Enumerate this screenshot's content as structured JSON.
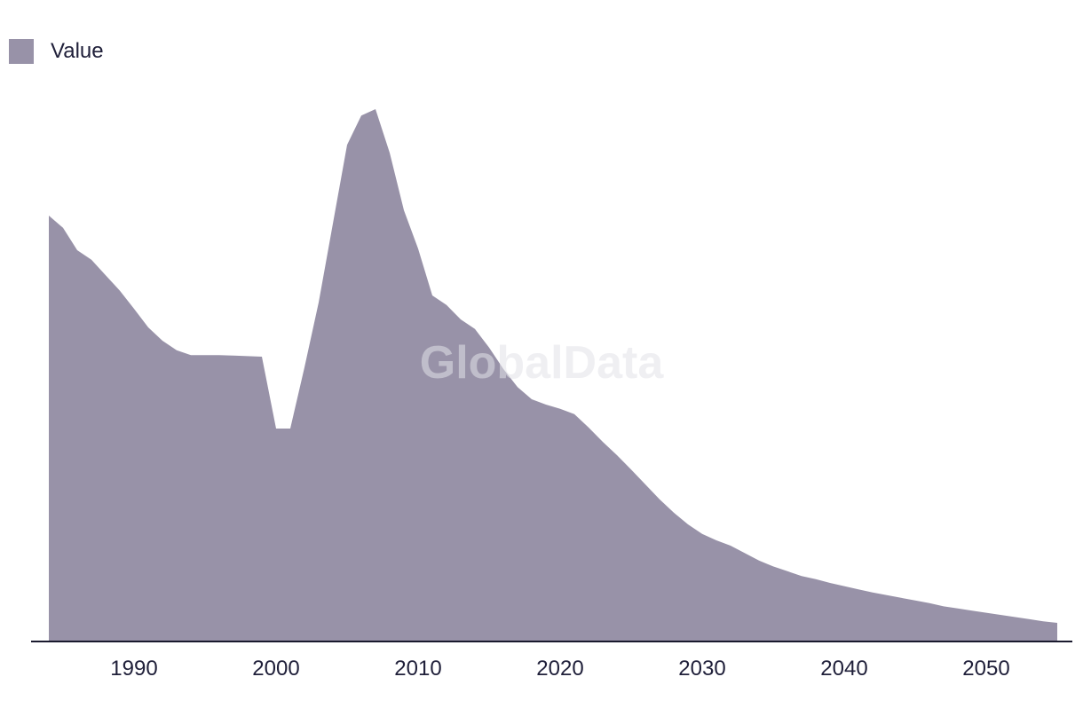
{
  "legend": {
    "label": "Value"
  },
  "watermark": {
    "text": "GlobalData"
  },
  "colors": {
    "series_fill": "#9892a8",
    "axis_line": "#1a1a2e",
    "tick_text": "#20203a",
    "legend_text": "#20203a",
    "watermark_text": "rgba(226,226,232,0.55)",
    "background": "#ffffff"
  },
  "chart_data": {
    "type": "area",
    "title": "",
    "xlabel": "",
    "ylabel": "",
    "legend_entries": [
      "Value"
    ],
    "legend_position": "top-left",
    "grid": false,
    "y_axis_visible": false,
    "x_axis_visible": true,
    "x_tick_labels": [
      "1990",
      "2000",
      "2010",
      "2020",
      "2030",
      "2040",
      "2050"
    ],
    "x_range": [
      1984,
      2055
    ],
    "ylim": [
      0,
      105
    ],
    "values_note": "No y-axis shown in source; values normalized so 2007 peak = 100",
    "series": [
      {
        "name": "Value",
        "points": [
          [
            1984,
            80.0
          ],
          [
            1985,
            77.7
          ],
          [
            1986,
            73.5
          ],
          [
            1987,
            71.7
          ],
          [
            1988,
            68.8
          ],
          [
            1989,
            65.9
          ],
          [
            1990,
            62.5
          ],
          [
            1991,
            59.0
          ],
          [
            1992,
            56.5
          ],
          [
            1993,
            54.7
          ],
          [
            1994,
            53.8
          ],
          [
            1995,
            53.8
          ],
          [
            1996,
            53.8
          ],
          [
            1997,
            53.7
          ],
          [
            1998,
            53.6
          ],
          [
            1999,
            53.5
          ],
          [
            2000,
            40.0
          ],
          [
            2001,
            40.0
          ],
          [
            2002,
            51.5
          ],
          [
            2003,
            63.7
          ],
          [
            2004,
            78.5
          ],
          [
            2005,
            93.3
          ],
          [
            2006,
            98.8
          ],
          [
            2007,
            100.0
          ],
          [
            2008,
            91.8
          ],
          [
            2009,
            81.0
          ],
          [
            2010,
            73.8
          ],
          [
            2011,
            65.0
          ],
          [
            2012,
            63.2
          ],
          [
            2013,
            60.5
          ],
          [
            2014,
            58.7
          ],
          [
            2015,
            55.2
          ],
          [
            2016,
            51.2
          ],
          [
            2017,
            47.8
          ],
          [
            2018,
            45.5
          ],
          [
            2019,
            44.5
          ],
          [
            2020,
            43.7
          ],
          [
            2021,
            42.7
          ],
          [
            2022,
            40.2
          ],
          [
            2023,
            37.5
          ],
          [
            2024,
            35.0
          ],
          [
            2025,
            32.3
          ],
          [
            2026,
            29.5
          ],
          [
            2027,
            26.7
          ],
          [
            2028,
            24.2
          ],
          [
            2029,
            22.0
          ],
          [
            2030,
            20.2
          ],
          [
            2031,
            19.0
          ],
          [
            2032,
            18.0
          ],
          [
            2033,
            16.6
          ],
          [
            2034,
            15.2
          ],
          [
            2035,
            14.1
          ],
          [
            2036,
            13.2
          ],
          [
            2037,
            12.3
          ],
          [
            2038,
            11.7
          ],
          [
            2039,
            11.0
          ],
          [
            2040,
            10.4
          ],
          [
            2041,
            9.8
          ],
          [
            2042,
            9.2
          ],
          [
            2043,
            8.7
          ],
          [
            2044,
            8.2
          ],
          [
            2045,
            7.7
          ],
          [
            2046,
            7.2
          ],
          [
            2047,
            6.6
          ],
          [
            2048,
            6.2
          ],
          [
            2049,
            5.8
          ],
          [
            2050,
            5.4
          ],
          [
            2051,
            5.0
          ],
          [
            2052,
            4.6
          ],
          [
            2053,
            4.2
          ],
          [
            2054,
            3.8
          ],
          [
            2055,
            3.5
          ]
        ]
      }
    ]
  }
}
